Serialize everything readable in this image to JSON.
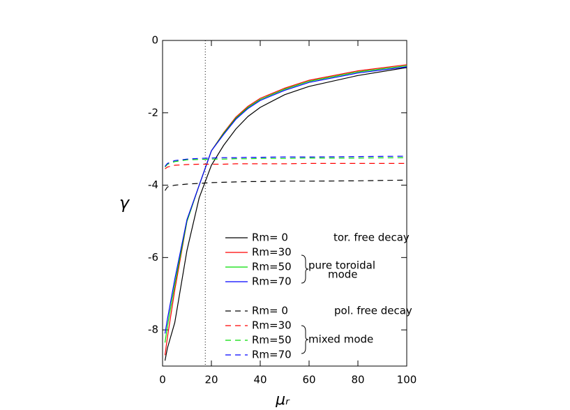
{
  "chart_data": {
    "type": "line",
    "xlabel": "μᵣ",
    "ylabel": "γ",
    "x": [
      1,
      2,
      5,
      10,
      15,
      20,
      25,
      30,
      35,
      40,
      50,
      60,
      80,
      100
    ],
    "series": [
      {
        "name": "Rm= 0",
        "color": "#000000",
        "linestyle": "solid",
        "values": [
          -8.85,
          -8.5,
          -7.8,
          -5.8,
          -4.35,
          -3.45,
          -2.9,
          -2.45,
          -2.1,
          -1.85,
          -1.5,
          -1.27,
          -0.97,
          -0.75
        ]
      },
      {
        "name": "Rm=30",
        "color": "#ff0000",
        "linestyle": "solid",
        "values": [
          -8.7,
          -8.2,
          -6.9,
          -5.0,
          -4.0,
          -3.05,
          -2.55,
          -2.12,
          -1.82,
          -1.6,
          -1.32,
          -1.1,
          -0.84,
          -0.67
        ]
      },
      {
        "name": "Rm=50",
        "color": "#00dd00",
        "linestyle": "solid",
        "values": [
          -8.35,
          -7.9,
          -6.75,
          -5.0,
          -4.0,
          -3.05,
          -2.57,
          -2.15,
          -1.85,
          -1.63,
          -1.35,
          -1.13,
          -0.87,
          -0.7
        ]
      },
      {
        "name": "Rm=70",
        "color": "#0000ff",
        "linestyle": "solid",
        "values": [
          -8.1,
          -7.7,
          -6.6,
          -4.95,
          -4.0,
          -3.05,
          -2.6,
          -2.18,
          -1.88,
          -1.66,
          -1.38,
          -1.16,
          -0.9,
          -0.73
        ]
      },
      {
        "name": "Rm= 0",
        "color": "#000000",
        "linestyle": "dashed",
        "values": [
          -4.15,
          -4.05,
          -4.0,
          -3.97,
          -3.95,
          -3.93,
          -3.92,
          -3.91,
          -3.9,
          -3.9,
          -3.89,
          -3.89,
          -3.88,
          -3.86
        ]
      },
      {
        "name": "Rm=30",
        "color": "#ff0000",
        "linestyle": "dashed",
        "values": [
          -3.55,
          -3.5,
          -3.45,
          -3.43,
          -3.42,
          -3.42,
          -3.42,
          -3.41,
          -3.41,
          -3.41,
          -3.41,
          -3.4,
          -3.4,
          -3.4
        ]
      },
      {
        "name": "Rm=50",
        "color": "#00dd00",
        "linestyle": "dashed",
        "values": [
          -3.5,
          -3.42,
          -3.35,
          -3.3,
          -3.29,
          -3.28,
          -3.28,
          -3.27,
          -3.27,
          -3.26,
          -3.26,
          -3.25,
          -3.25,
          -3.24
        ]
      },
      {
        "name": "Rm=70",
        "color": "#0000ff",
        "linestyle": "dashed",
        "values": [
          -3.48,
          -3.4,
          -3.32,
          -3.28,
          -3.26,
          -3.25,
          -3.24,
          -3.24,
          -3.23,
          -3.23,
          -3.22,
          -3.22,
          -3.21,
          -3.2
        ]
      }
    ],
    "annotations": [
      "tor. free decay",
      "pure toroidal",
      "mode",
      "pol. free decay",
      "mixed mode"
    ],
    "vline_x": 17.5,
    "xlim": [
      0,
      100
    ],
    "xticks": [
      0,
      20,
      40,
      60,
      80,
      100
    ],
    "ylim": [
      -9,
      0
    ],
    "yticks": [
      -8,
      -6,
      -4,
      -2,
      0
    ]
  }
}
